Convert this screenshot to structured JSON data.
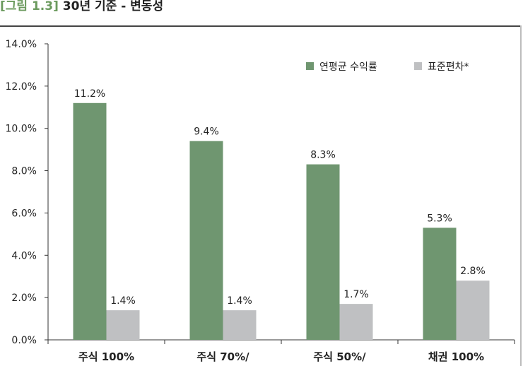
{
  "figure": {
    "label": "[그림 1.3]",
    "title": "30년 기준 - 변동성"
  },
  "colors": {
    "return": "#6f9670",
    "stdev": "#bfc0c2",
    "figure_label": "#6b9a5e"
  },
  "chart_data": {
    "type": "bar",
    "categories": [
      "주식 100%",
      "주식 70%/",
      "주식 50%/",
      "채권 100%"
    ],
    "series": [
      {
        "name": "연평균 수익률",
        "values": [
          11.2,
          9.4,
          8.3,
          5.3
        ],
        "labels": [
          "11.2%",
          "9.4%",
          "8.3%",
          "5.3%"
        ]
      },
      {
        "name": "표준편차*",
        "values": [
          1.4,
          1.4,
          1.7,
          2.8
        ],
        "labels": [
          "1.4%",
          "1.4%",
          "1.7%",
          "2.8%"
        ]
      }
    ],
    "y_ticks": [
      0,
      2,
      4,
      6,
      8,
      10,
      12,
      14
    ],
    "y_tick_labels": [
      "0.0%",
      "2.0%",
      "4.0%",
      "6.0%",
      "8.0%",
      "10.0%",
      "12.0%",
      "14.0%"
    ],
    "ylim": [
      0,
      14
    ],
    "grid": false,
    "legend_position": "top-right"
  }
}
